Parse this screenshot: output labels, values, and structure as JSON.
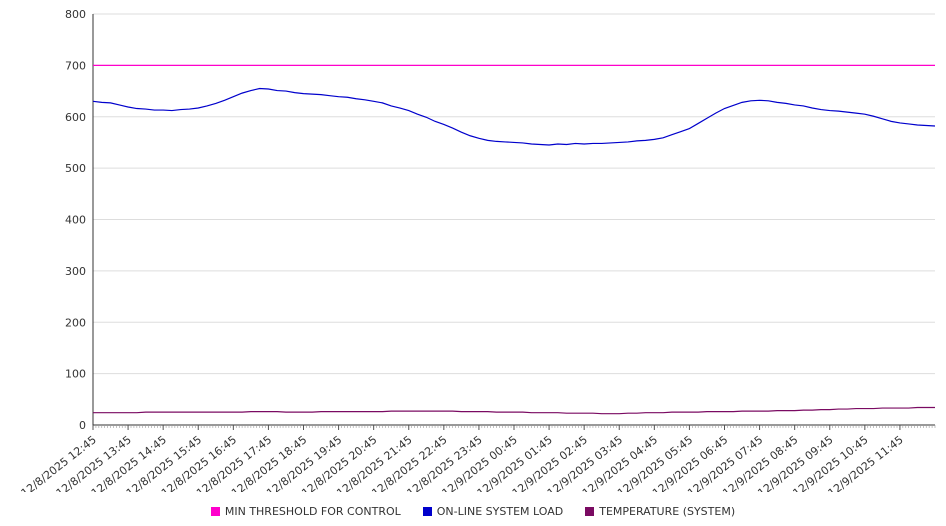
{
  "chart_data": {
    "type": "line",
    "title": "",
    "xlabel": "",
    "ylabel": "",
    "ylim": [
      0,
      800
    ],
    "y_ticks": [
      0,
      100,
      200,
      300,
      400,
      500,
      600,
      700,
      800
    ],
    "grid": "horizontal",
    "legend_position": "bottom",
    "x_span_hours": 24,
    "minor_tick_count": 288,
    "x_labels": [
      "12/8/2025 12:45",
      "12/8/2025 13:45",
      "12/8/2025 14:45",
      "12/8/2025 15:45",
      "12/8/2025 16:45",
      "12/8/2025 17:45",
      "12/8/2025 18:45",
      "12/8/2025 19:45",
      "12/8/2025 20:45",
      "12/8/2025 21:45",
      "12/8/2025 22:45",
      "12/8/2025 23:45",
      "12/9/2025 00:45",
      "12/9/2025 01:45",
      "12/9/2025 02:45",
      "12/9/2025 03:45",
      "12/9/2025 04:45",
      "12/9/2025 05:45",
      "12/9/2025 06:45",
      "12/9/2025 07:45",
      "12/9/2025 08:45",
      "12/9/2025 09:45",
      "12/9/2025 10:45",
      "12/9/2025 11:45"
    ],
    "series": [
      {
        "name": "MIN THRESHOLD FOR CONTROL",
        "color": "#ff00cc",
        "values": [
          700,
          700
        ]
      },
      {
        "name": "ON-LINE SYSTEM LOAD",
        "color": "#0000cc",
        "values": [
          630,
          628,
          627,
          623,
          619,
          616,
          615,
          613,
          613,
          612,
          614,
          615,
          617,
          621,
          626,
          632,
          639,
          646,
          651,
          655,
          654,
          651,
          650,
          647,
          645,
          644,
          643,
          641,
          639,
          638,
          635,
          633,
          630,
          627,
          621,
          617,
          612,
          605,
          599,
          591,
          585,
          578,
          570,
          563,
          558,
          554,
          552,
          551,
          550,
          549,
          547,
          546,
          545,
          547,
          546,
          548,
          547,
          548,
          548,
          549,
          550,
          551,
          553,
          554,
          556,
          559,
          565,
          571,
          577,
          587,
          597,
          607,
          616,
          622,
          628,
          631,
          632,
          631,
          628,
          626,
          623,
          621,
          617,
          614,
          612,
          611,
          609,
          607,
          605,
          601,
          596,
          591,
          588,
          586,
          584,
          583,
          582
        ]
      },
      {
        "name": "TEMPERATURE (SYSTEM)",
        "color": "#7a0a62",
        "values": [
          24,
          24,
          24,
          24,
          24,
          24,
          25,
          25,
          25,
          25,
          25,
          25,
          25,
          25,
          25,
          25,
          25,
          25,
          26,
          26,
          26,
          26,
          25,
          25,
          25,
          25,
          26,
          26,
          26,
          26,
          26,
          26,
          26,
          26,
          27,
          27,
          27,
          27,
          27,
          27,
          27,
          27,
          26,
          26,
          26,
          26,
          25,
          25,
          25,
          25,
          24,
          24,
          24,
          24,
          23,
          23,
          23,
          23,
          22,
          22,
          22,
          23,
          23,
          24,
          24,
          24,
          25,
          25,
          25,
          25,
          26,
          26,
          26,
          26,
          27,
          27,
          27,
          27,
          28,
          28,
          28,
          29,
          29,
          30,
          30,
          31,
          31,
          32,
          32,
          32,
          33,
          33,
          33,
          33,
          34,
          34,
          34
        ]
      }
    ]
  }
}
